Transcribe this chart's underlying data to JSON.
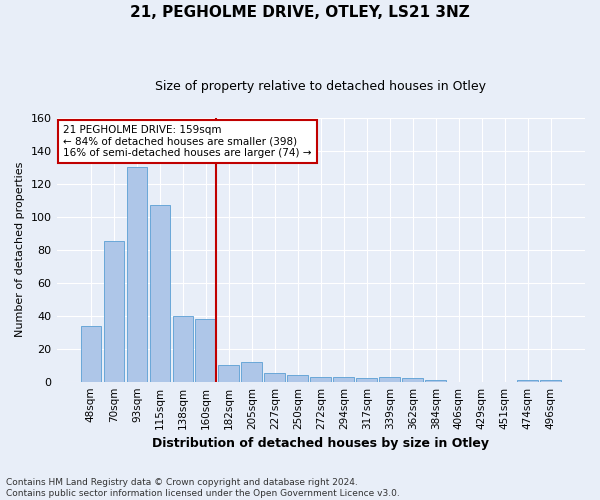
{
  "title": "21, PEGHOLME DRIVE, OTLEY, LS21 3NZ",
  "subtitle": "Size of property relative to detached houses in Otley",
  "xlabel": "Distribution of detached houses by size in Otley",
  "ylabel": "Number of detached properties",
  "footnote": "Contains HM Land Registry data © Crown copyright and database right 2024.\nContains public sector information licensed under the Open Government Licence v3.0.",
  "bar_labels": [
    "48sqm",
    "70sqm",
    "93sqm",
    "115sqm",
    "138sqm",
    "160sqm",
    "182sqm",
    "205sqm",
    "227sqm",
    "250sqm",
    "272sqm",
    "294sqm",
    "317sqm",
    "339sqm",
    "362sqm",
    "384sqm",
    "406sqm",
    "429sqm",
    "451sqm",
    "474sqm",
    "496sqm"
  ],
  "bar_values": [
    34,
    85,
    130,
    107,
    40,
    38,
    10,
    12,
    5,
    4,
    3,
    3,
    2,
    3,
    2,
    1,
    0,
    0,
    0,
    1,
    1
  ],
  "bar_color": "#aec6e8",
  "bar_edge_color": "#5a9fd4",
  "highlight_index": 5,
  "highlight_color": "#c00000",
  "ylim": [
    0,
    160
  ],
  "yticks": [
    0,
    20,
    40,
    60,
    80,
    100,
    120,
    140,
    160
  ],
  "annotation_line1": "21 PEGHOLME DRIVE: 159sqm",
  "annotation_line2": "← 84% of detached houses are smaller (398)",
  "annotation_line3": "16% of semi-detached houses are larger (74) →",
  "annotation_box_color": "#ffffff",
  "annotation_box_edge": "#c00000",
  "bg_color": "#e8eef8",
  "plot_bg_color": "#e8eef8",
  "grid_color": "#ffffff",
  "title_fontsize": 11,
  "subtitle_fontsize": 9,
  "ylabel_fontsize": 8,
  "xlabel_fontsize": 9,
  "tick_fontsize": 7.5,
  "footnote_fontsize": 6.5
}
